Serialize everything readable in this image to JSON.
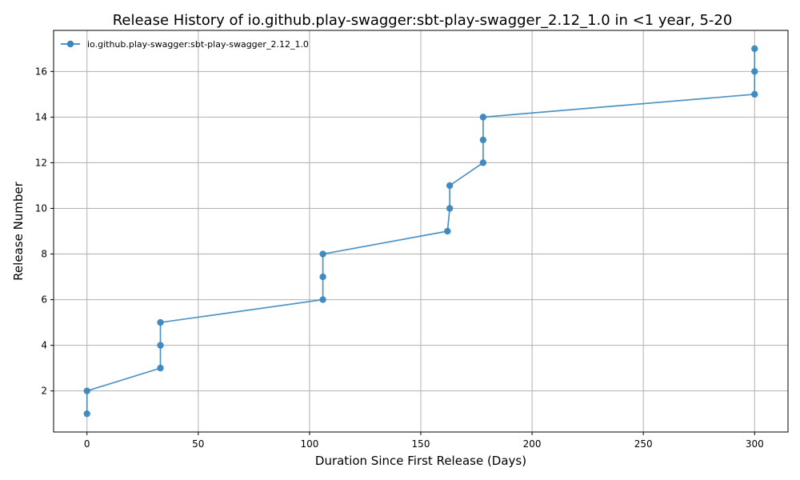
{
  "chart_data": {
    "type": "line",
    "title": "Release History of io.github.play-swagger:sbt-play-swagger_2.12_1.0 in <1 year, 5-20",
    "xlabel": "Duration Since First Release (Days)",
    "ylabel": "Release Number",
    "xlim": [
      -15,
      315
    ],
    "ylim": [
      0.2,
      17.8
    ],
    "xticks": [
      0,
      50,
      100,
      150,
      200,
      250,
      300
    ],
    "yticks": [
      2,
      4,
      6,
      8,
      10,
      12,
      14,
      16
    ],
    "grid": true,
    "legend_position": "top-left",
    "series": [
      {
        "name": "io.github.play-swagger:sbt-play-swagger_2.12_1.0",
        "color": "#3a87bf",
        "marker": "circle",
        "x": [
          0,
          0,
          33,
          33,
          33,
          106,
          106,
          106,
          162,
          163,
          163,
          178,
          178,
          178,
          300,
          300,
          300
        ],
        "y": [
          1,
          2,
          3,
          4,
          5,
          6,
          7,
          8,
          9,
          10,
          11,
          12,
          13,
          14,
          15,
          16,
          17
        ]
      }
    ]
  }
}
